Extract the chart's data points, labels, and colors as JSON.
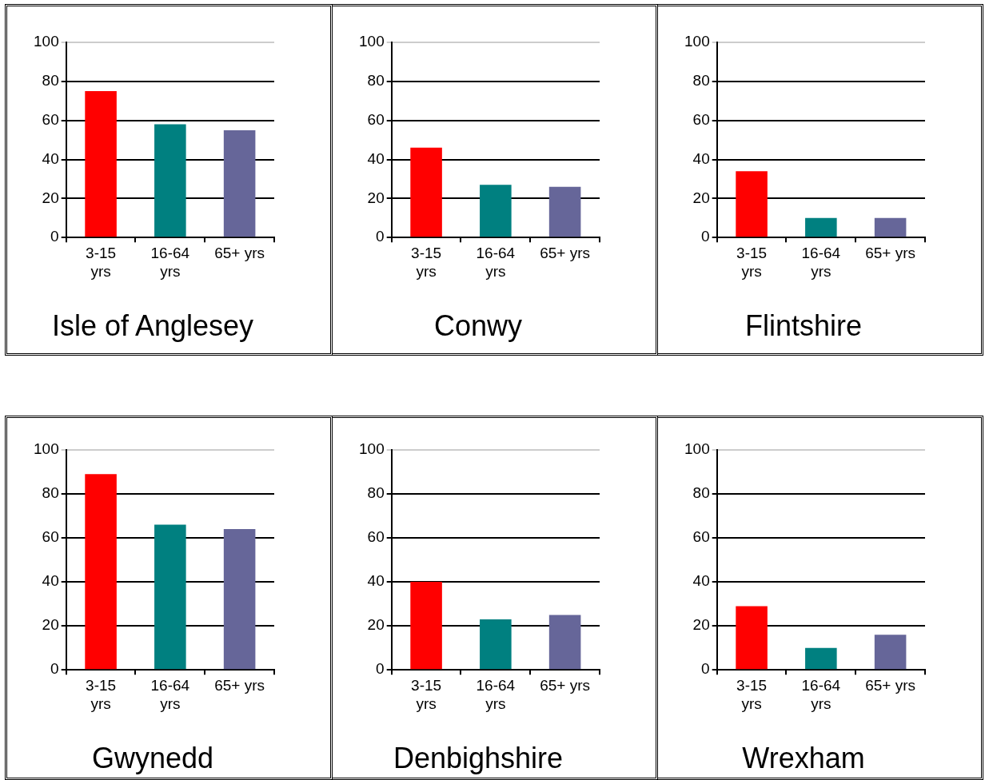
{
  "chart_data": [
    {
      "type": "bar",
      "title": "Isle of Anglesey",
      "categories": [
        "3-15 yrs",
        "16-64 yrs",
        "65+ yrs"
      ],
      "values": [
        75,
        58,
        55
      ],
      "colors": [
        "#ff0000",
        "#008080",
        "#666699"
      ],
      "ylim": [
        0,
        100
      ],
      "yticks": [
        0,
        20,
        40,
        60,
        80,
        100
      ],
      "grid": "y"
    },
    {
      "type": "bar",
      "title": "Conwy",
      "categories": [
        "3-15 yrs",
        "16-64 yrs",
        "65+ yrs"
      ],
      "values": [
        46,
        27,
        26
      ],
      "colors": [
        "#ff0000",
        "#008080",
        "#666699"
      ],
      "ylim": [
        0,
        100
      ],
      "yticks": [
        0,
        20,
        40,
        60,
        80,
        100
      ],
      "grid": "y"
    },
    {
      "type": "bar",
      "title": "Flintshire",
      "categories": [
        "3-15 yrs",
        "16-64 yrs",
        "65+ yrs"
      ],
      "values": [
        34,
        10,
        10
      ],
      "colors": [
        "#ff0000",
        "#008080",
        "#666699"
      ],
      "ylim": [
        0,
        100
      ],
      "yticks": [
        0,
        20,
        40,
        60,
        80,
        100
      ],
      "grid": "y"
    },
    {
      "type": "bar",
      "title": "Gwynedd",
      "categories": [
        "3-15 yrs",
        "16-64 yrs",
        "65+ yrs"
      ],
      "values": [
        89,
        66,
        64
      ],
      "colors": [
        "#ff0000",
        "#008080",
        "#666699"
      ],
      "ylim": [
        0,
        100
      ],
      "yticks": [
        0,
        20,
        40,
        60,
        80,
        100
      ],
      "grid": "y"
    },
    {
      "type": "bar",
      "title": "Denbighshire",
      "categories": [
        "3-15 yrs",
        "16-64 yrs",
        "65+ yrs"
      ],
      "values": [
        40,
        23,
        25
      ],
      "colors": [
        "#ff0000",
        "#008080",
        "#666699"
      ],
      "ylim": [
        0,
        100
      ],
      "yticks": [
        0,
        20,
        40,
        60,
        80,
        100
      ],
      "grid": "y"
    },
    {
      "type": "bar",
      "title": "Wrexham",
      "categories": [
        "3-15 yrs",
        "16-64 yrs",
        "65+ yrs"
      ],
      "values": [
        29,
        10,
        16
      ],
      "colors": [
        "#ff0000",
        "#008080",
        "#666699"
      ],
      "ylim": [
        0,
        100
      ],
      "yticks": [
        0,
        20,
        40,
        60,
        80,
        100
      ],
      "grid": "y"
    }
  ]
}
